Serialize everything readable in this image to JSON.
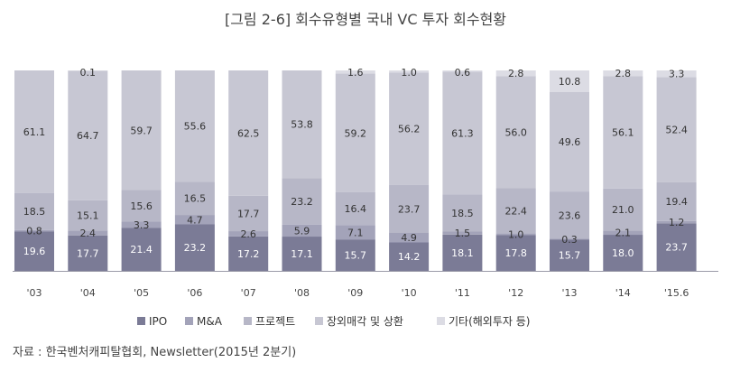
{
  "chart_data": {
    "type": "bar",
    "stacked": true,
    "title": "[그림 2-6] 회수유형별 국내 VC 투자 회수현황",
    "xlabel": "",
    "ylabel": "",
    "ylim": [
      0,
      100
    ],
    "grid": false,
    "legend_position": "bottom",
    "categories": [
      "'03",
      "'04",
      "'05",
      "'06",
      "'07",
      "'08",
      "'09",
      "'10",
      "'11",
      "'12",
      "'13",
      "'14",
      "'15.6"
    ],
    "series": [
      {
        "name": "IPO",
        "color": "#7b7b96",
        "label_color": "#ffffff",
        "values": [
          19.6,
          17.7,
          21.4,
          23.2,
          17.2,
          17.1,
          15.7,
          14.2,
          18.1,
          17.8,
          15.7,
          18.0,
          23.7
        ]
      },
      {
        "name": "M&A",
        "color": "#a3a3b9",
        "label_color": "#333333",
        "values": [
          0.8,
          2.4,
          3.3,
          4.7,
          2.6,
          5.9,
          7.1,
          4.9,
          1.5,
          1.0,
          0.3,
          2.1,
          1.2
        ]
      },
      {
        "name": "프로젝트",
        "color": "#b7b7c7",
        "label_color": "#333333",
        "values": [
          18.5,
          15.1,
          15.6,
          16.5,
          17.7,
          23.2,
          16.4,
          23.7,
          18.5,
          22.4,
          23.6,
          21.0,
          19.4
        ]
      },
      {
        "name": "장외매각 및 상환",
        "color": "#c7c7d3",
        "label_color": "#333333",
        "values": [
          61.1,
          64.7,
          59.7,
          55.6,
          62.5,
          53.8,
          59.2,
          56.2,
          61.3,
          56.0,
          49.6,
          56.1,
          52.4
        ]
      },
      {
        "name": "기타(해외투자 등)",
        "color": "#dcdce4",
        "label_color": "#333333",
        "values": [
          0.0,
          0.1,
          0.0,
          0.0,
          0.0,
          0.0,
          1.6,
          1.0,
          0.6,
          2.8,
          10.8,
          2.8,
          3.3
        ]
      }
    ]
  },
  "source": "자료 : 한국벤처캐피탈협회, Newsletter(2015년 2분기)"
}
